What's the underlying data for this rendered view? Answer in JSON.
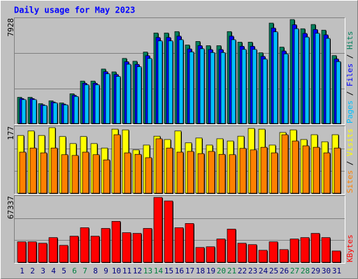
{
  "title": "Daily usage for May 2023",
  "chart_data": [
    {
      "type": "bar3d",
      "ylim": [
        0,
        7928
      ],
      "series": [
        {
          "name": "Hits",
          "color": "#00805c",
          "values": [
            1995,
            1995,
            1510,
            1726,
            1564,
            2265,
            3236,
            3236,
            4153,
            3937,
            4962,
            4746,
            5447,
            6903,
            6903,
            7011,
            5986,
            6256,
            5933,
            5933,
            7011,
            6202,
            6202,
            5393,
            7658,
            5825,
            7928,
            7227,
            7551,
            7119,
            5178
          ]
        },
        {
          "name": "Files",
          "color": "#0000ff",
          "values": [
            1900,
            1900,
            1430,
            1640,
            1480,
            2150,
            3070,
            3070,
            3950,
            3740,
            4710,
            4510,
            5170,
            6560,
            6560,
            6660,
            5690,
            5940,
            5640,
            5640,
            6660,
            5890,
            5890,
            5120,
            7280,
            5530,
            7530,
            6870,
            7170,
            6760,
            4920
          ]
        },
        {
          "name": "Pages",
          "color": "#00c0ff",
          "values": [
            1820,
            1820,
            1370,
            1570,
            1420,
            2060,
            2950,
            2950,
            3790,
            3590,
            4520,
            4330,
            4960,
            6300,
            6300,
            6390,
            5460,
            5700,
            5410,
            5410,
            6390,
            5650,
            5650,
            4910,
            6990,
            5310,
            7230,
            6590,
            6880,
            6490,
            4720
          ]
        }
      ]
    },
    {
      "type": "bar3d",
      "ylim": [
        0,
        177
      ],
      "series": [
        {
          "name": "Visits",
          "color": "#ffff00",
          "values": [
            156,
            168,
            156,
            177,
            153,
            134,
            153,
            134,
            122,
            173,
            171,
            117,
            130,
            154,
            145,
            168,
            136,
            149,
            130,
            147,
            141,
            154,
            175,
            173,
            130,
            164,
            171,
            145,
            158,
            139,
            158
          ]
        },
        {
          "name": "Sites",
          "color": "#ff8000",
          "values": [
            111,
            122,
            109,
            122,
            104,
            102,
            111,
            104,
            90,
            158,
            109,
            105,
            96,
            147,
            122,
            111,
            113,
            107,
            113,
            105,
            104,
            121,
            117,
            124,
            109,
            158,
            141,
            128,
            124,
            109,
            122
          ]
        }
      ]
    },
    {
      "type": "bar3d",
      "ylim": [
        0,
        67337
      ],
      "categories": [
        "1",
        "2",
        "3",
        "4",
        "5",
        "6",
        "7",
        "8",
        "9",
        "10",
        "11",
        "12",
        "13",
        "14",
        "15",
        "16",
        "17",
        "18",
        "19",
        "20",
        "21",
        "22",
        "23",
        "24",
        "25",
        "26",
        "27",
        "28",
        "29",
        "30",
        "31"
      ],
      "category_colors": [
        "#000080",
        "#000080",
        "#000080",
        "#000080",
        "#000080",
        "#008040",
        "#008040",
        "#000080",
        "#000080",
        "#000080",
        "#000080",
        "#000080",
        "#008040",
        "#008040",
        "#000080",
        "#000080",
        "#000080",
        "#000080",
        "#000080",
        "#008040",
        "#008040",
        "#000080",
        "#000080",
        "#000080",
        "#000080",
        "#000080",
        "#008040",
        "#008040",
        "#000080",
        "#000080",
        "#000080"
      ],
      "series": [
        {
          "name": "KBytes",
          "color": "#ff0000",
          "values": [
            21228,
            21228,
            19764,
            25620,
            17568,
            27084,
            35868,
            27084,
            35136,
            42456,
            30744,
            30012,
            35136,
            67337,
            63684,
            35868,
            40260,
            15372,
            16104,
            24156,
            34404,
            19764,
            18300,
            12444,
            21228,
            13176,
            24156,
            25620,
            30012,
            25620,
            11712
          ]
        }
      ]
    }
  ]
}
